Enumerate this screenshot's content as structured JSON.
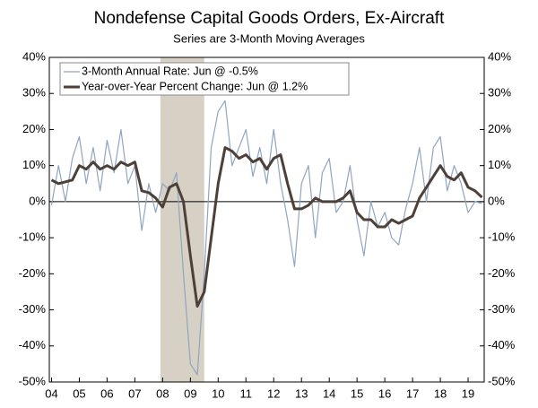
{
  "chart_data": {
    "type": "line",
    "title": "Nondefense Capital Goods Orders, Ex-Aircraft",
    "subtitle": "Series are 3-Month Moving Averages",
    "x": [
      2004.0,
      2004.25,
      2004.5,
      2004.75,
      2005.0,
      2005.25,
      2005.5,
      2005.75,
      2006.0,
      2006.25,
      2006.5,
      2006.75,
      2007.0,
      2007.25,
      2007.5,
      2007.75,
      2008.0,
      2008.25,
      2008.5,
      2008.75,
      2009.0,
      2009.25,
      2009.5,
      2009.75,
      2010.0,
      2010.25,
      2010.5,
      2010.75,
      2011.0,
      2011.25,
      2011.5,
      2011.75,
      2012.0,
      2012.25,
      2012.5,
      2012.75,
      2013.0,
      2013.25,
      2013.5,
      2013.75,
      2014.0,
      2014.25,
      2014.5,
      2014.75,
      2015.0,
      2015.25,
      2015.5,
      2015.75,
      2016.0,
      2016.25,
      2016.5,
      2016.75,
      2017.0,
      2017.25,
      2017.5,
      2017.75,
      2018.0,
      2018.25,
      2018.5,
      2018.75,
      2019.0,
      2019.25,
      2019.5
    ],
    "series": [
      {
        "name": "3-Month Annual Rate: Jun @ -0.5%",
        "color": "#8fa5c2",
        "width": 1.2,
        "values": [
          -1,
          10,
          0,
          12,
          18,
          5,
          15,
          3,
          17,
          8,
          20,
          5,
          10,
          -8,
          5,
          -3,
          5,
          3,
          8,
          -20,
          -45,
          -48,
          -20,
          15,
          25,
          28,
          10,
          15,
          20,
          7,
          15,
          5,
          20,
          5,
          -5,
          -18,
          5,
          10,
          -10,
          8,
          12,
          -3,
          0,
          10,
          -5,
          -15,
          0,
          -7,
          -3,
          -10,
          -12,
          -2,
          5,
          15,
          0,
          15,
          18,
          3,
          10,
          5,
          -3,
          0,
          -0.5
        ]
      },
      {
        "name": "Year-over-Year Percent Change: Jun @ 1.2%",
        "color": "#4d4038",
        "width": 3,
        "values": [
          6,
          5,
          5.5,
          6,
          10,
          9,
          11,
          9,
          10,
          9,
          11,
          10,
          11,
          3,
          2.5,
          1,
          -1.5,
          4,
          5,
          0,
          -15,
          -29,
          -25,
          -10,
          5,
          15,
          14,
          12,
          13,
          11,
          12,
          9,
          12,
          13,
          5,
          -2,
          -2,
          -1,
          1,
          0,
          0,
          0,
          1,
          3,
          -3,
          -5,
          -5,
          -7,
          -7,
          -5,
          -6,
          -5,
          -4,
          1,
          4,
          7,
          10,
          7,
          6,
          8,
          4,
          3,
          1.2
        ]
      }
    ],
    "shaded_regions": [
      [
        2007.92,
        2009.5
      ]
    ],
    "shade_color": "#d7d1c5",
    "xlim": [
      2003.92,
      2019.58
    ],
    "xticks": [
      {
        "value": 2004,
        "label": "04"
      },
      {
        "value": 2005,
        "label": "05"
      },
      {
        "value": 2006,
        "label": "06"
      },
      {
        "value": 2007,
        "label": "07"
      },
      {
        "value": 2008,
        "label": "08"
      },
      {
        "value": 2009,
        "label": "09"
      },
      {
        "value": 2010,
        "label": "10"
      },
      {
        "value": 2011,
        "label": "11"
      },
      {
        "value": 2012,
        "label": "12"
      },
      {
        "value": 2013,
        "label": "13"
      },
      {
        "value": 2014,
        "label": "14"
      },
      {
        "value": 2015,
        "label": "15"
      },
      {
        "value": 2016,
        "label": "16"
      },
      {
        "value": 2017,
        "label": "17"
      },
      {
        "value": 2018,
        "label": "18"
      },
      {
        "value": 2019,
        "label": "19"
      }
    ],
    "ylim": [
      -50,
      40
    ],
    "yticks": [
      {
        "value": -50,
        "label": "-50%"
      },
      {
        "value": -40,
        "label": "-40%"
      },
      {
        "value": -30,
        "label": "-30%"
      },
      {
        "value": -20,
        "label": "-20%"
      },
      {
        "value": -10,
        "label": "-10%"
      },
      {
        "value": 0,
        "label": "0%"
      },
      {
        "value": 10,
        "label": "10%"
      },
      {
        "value": 20,
        "label": "20%"
      },
      {
        "value": 30,
        "label": "30%"
      },
      {
        "value": 40,
        "label": "40%"
      }
    ],
    "y2lim": [
      -50,
      40
    ],
    "y2ticks": [
      {
        "value": -50,
        "label": "-50%"
      },
      {
        "value": -40,
        "label": "-40%"
      },
      {
        "value": -30,
        "label": "-30%"
      },
      {
        "value": -20,
        "label": "-20%"
      },
      {
        "value": -10,
        "label": "-10%"
      },
      {
        "value": 0,
        "label": "0%"
      },
      {
        "value": 10,
        "label": "10%"
      },
      {
        "value": 20,
        "label": "20%"
      },
      {
        "value": 30,
        "label": "30%"
      },
      {
        "value": 40,
        "label": "40%"
      }
    ],
    "legend": "upper-left"
  }
}
